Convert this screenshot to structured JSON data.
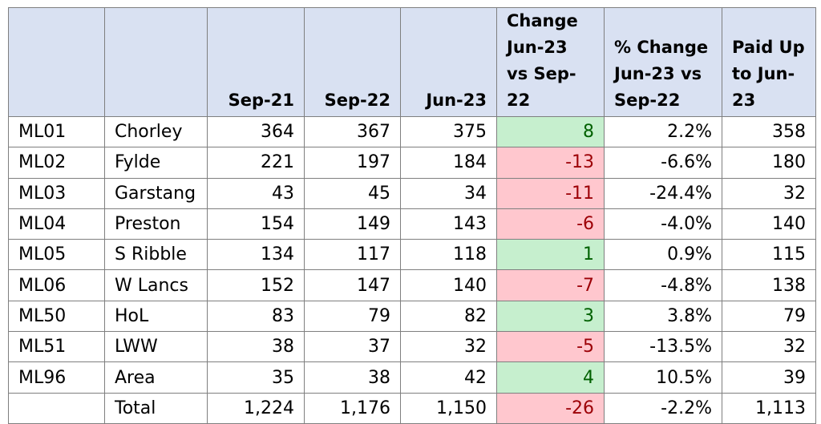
{
  "headers": [
    "",
    "",
    "Sep-21",
    "Sep-22",
    "Jun-23",
    "Change Jun-23 vs Sep-22",
    "% Change Jun-23 vs Sep-22",
    "Paid Up to Jun-23"
  ],
  "rows": [
    {
      "code": "ML01",
      "name": "Chorley",
      "sep21": "364",
      "sep22": "367",
      "jun23": "375",
      "change": "8",
      "pct": "2.2%",
      "paid": "358",
      "trend": "up"
    },
    {
      "code": "ML02",
      "name": "Fylde",
      "sep21": "221",
      "sep22": "197",
      "jun23": "184",
      "change": "-13",
      "pct": "-6.6%",
      "paid": "180",
      "trend": "down"
    },
    {
      "code": "ML03",
      "name": "Garstang",
      "sep21": "43",
      "sep22": "45",
      "jun23": "34",
      "change": "-11",
      "pct": "-24.4%",
      "paid": "32",
      "trend": "down"
    },
    {
      "code": "ML04",
      "name": "Preston",
      "sep21": "154",
      "sep22": "149",
      "jun23": "143",
      "change": "-6",
      "pct": "-4.0%",
      "paid": "140",
      "trend": "down"
    },
    {
      "code": "ML05",
      "name": "S Ribble",
      "sep21": "134",
      "sep22": "117",
      "jun23": "118",
      "change": "1",
      "pct": "0.9%",
      "paid": "115",
      "trend": "up"
    },
    {
      "code": "ML06",
      "name": "W Lancs",
      "sep21": "152",
      "sep22": "147",
      "jun23": "140",
      "change": "-7",
      "pct": "-4.8%",
      "paid": "138",
      "trend": "down"
    },
    {
      "code": "ML50",
      "name": "HoL",
      "sep21": "83",
      "sep22": "79",
      "jun23": "82",
      "change": "3",
      "pct": "3.8%",
      "paid": "79",
      "trend": "up"
    },
    {
      "code": "ML51",
      "name": "LWW",
      "sep21": "38",
      "sep22": "37",
      "jun23": "32",
      "change": "-5",
      "pct": "-13.5%",
      "paid": "32",
      "trend": "down"
    },
    {
      "code": "ML96",
      "name": "Area",
      "sep21": "35",
      "sep22": "38",
      "jun23": "42",
      "change": "4",
      "pct": "10.5%",
      "paid": "39",
      "trend": "up"
    },
    {
      "code": "",
      "name": "Total",
      "sep21": "1,224",
      "sep22": "1,176",
      "jun23": "1,150",
      "change": "-26",
      "pct": "-2.2%",
      "paid": "1,113",
      "trend": "down"
    }
  ],
  "colors": {
    "header_bg": "#d9e1f2",
    "positive_bg": "#c6efce",
    "positive_text": "#006100",
    "negative_bg": "#ffc7ce",
    "negative_text": "#9c0006",
    "gridline": "#7f7f7f"
  }
}
